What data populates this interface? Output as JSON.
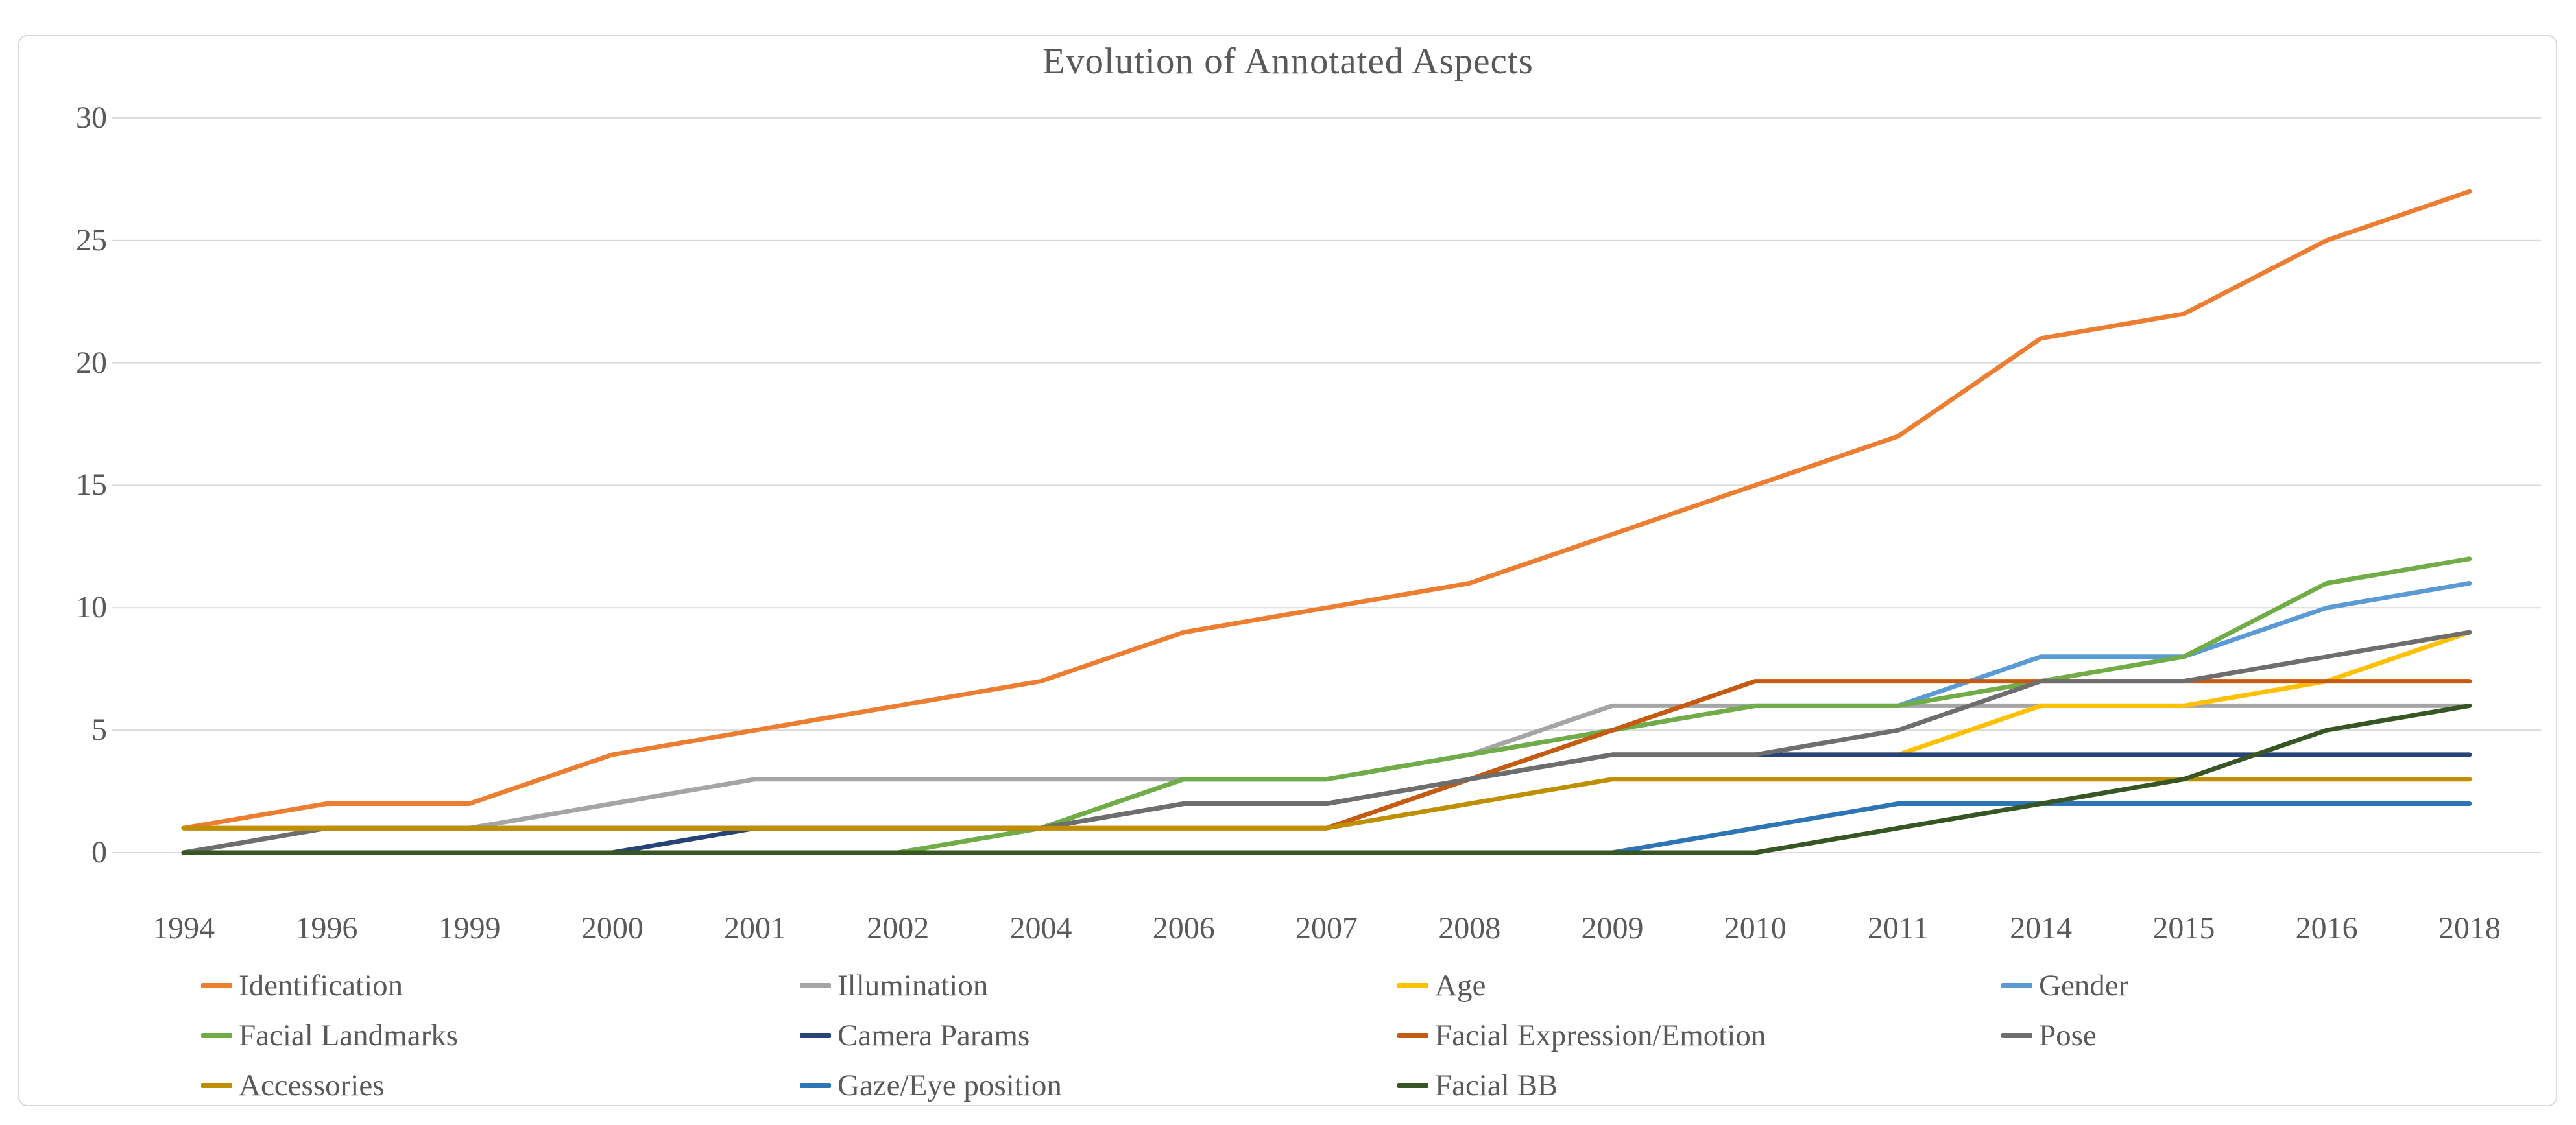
{
  "chart_data": {
    "type": "line",
    "title": "Evolution of Annotated Aspects",
    "xlabel": "",
    "ylabel": "",
    "ylim": [
      0,
      30
    ],
    "ytick_step": 5,
    "y_tick_labels": [
      "0",
      "5",
      "10",
      "15",
      "20",
      "25",
      "30"
    ],
    "grid": true,
    "legend_position": "bottom",
    "categories": [
      "1994",
      "1996",
      "1999",
      "2000",
      "2001",
      "2002",
      "2004",
      "2006",
      "2007",
      "2008",
      "2009",
      "2010",
      "2011",
      "2014",
      "2015",
      "2016",
      "2018"
    ],
    "series": [
      {
        "name": "Identification",
        "color": "#ED7D31",
        "values": [
          1,
          2,
          2,
          4,
          5,
          6,
          7,
          9,
          10,
          11,
          13,
          15,
          17,
          21,
          22,
          25,
          27
        ]
      },
      {
        "name": "Illumination",
        "color": "#A5A5A5",
        "values": [
          0,
          1,
          1,
          2,
          3,
          3,
          3,
          3,
          3,
          4,
          6,
          6,
          6,
          6,
          6,
          6,
          6
        ]
      },
      {
        "name": "Age",
        "color": "#FFC000",
        "values": [
          0,
          0,
          0,
          0,
          1,
          1,
          1,
          2,
          2,
          3,
          4,
          4,
          4,
          6,
          6,
          7,
          9
        ]
      },
      {
        "name": "Gender",
        "color": "#5B9BD5",
        "values": [
          0,
          0,
          0,
          0,
          0,
          0,
          1,
          3,
          3,
          4,
          5,
          6,
          6,
          8,
          8,
          10,
          11
        ]
      },
      {
        "name": "Facial Landmarks",
        "color": "#70AD47",
        "values": [
          0,
          0,
          0,
          0,
          0,
          0,
          1,
          3,
          3,
          4,
          5,
          6,
          6,
          7,
          8,
          11,
          12
        ]
      },
      {
        "name": "Camera Params",
        "color": "#264478",
        "values": [
          0,
          0,
          0,
          0,
          1,
          1,
          1,
          2,
          2,
          3,
          4,
          4,
          4,
          4,
          4,
          4,
          4
        ]
      },
      {
        "name": "Facial Expression/Emotion",
        "color": "#C55A11",
        "values": [
          1,
          1,
          1,
          1,
          1,
          1,
          1,
          1,
          1,
          3,
          5,
          7,
          7,
          7,
          7,
          7,
          7
        ]
      },
      {
        "name": "Pose",
        "color": "#6E6E6E",
        "values": [
          0,
          1,
          1,
          1,
          1,
          1,
          1,
          2,
          2,
          3,
          4,
          4,
          5,
          7,
          7,
          8,
          9
        ]
      },
      {
        "name": "Accessories",
        "color": "#BF8F00",
        "values": [
          1,
          1,
          1,
          1,
          1,
          1,
          1,
          1,
          1,
          2,
          3,
          3,
          3,
          3,
          3,
          3,
          3
        ]
      },
      {
        "name": "Gaze/Eye position",
        "color": "#2E75B6",
        "values": [
          0,
          0,
          0,
          0,
          0,
          0,
          0,
          0,
          0,
          0,
          0,
          1,
          2,
          2,
          2,
          2,
          2
        ]
      },
      {
        "name": "Facial BB",
        "color": "#375623",
        "values": [
          0,
          0,
          0,
          0,
          0,
          0,
          0,
          0,
          0,
          0,
          0,
          0,
          1,
          2,
          3,
          5,
          6
        ]
      }
    ]
  }
}
